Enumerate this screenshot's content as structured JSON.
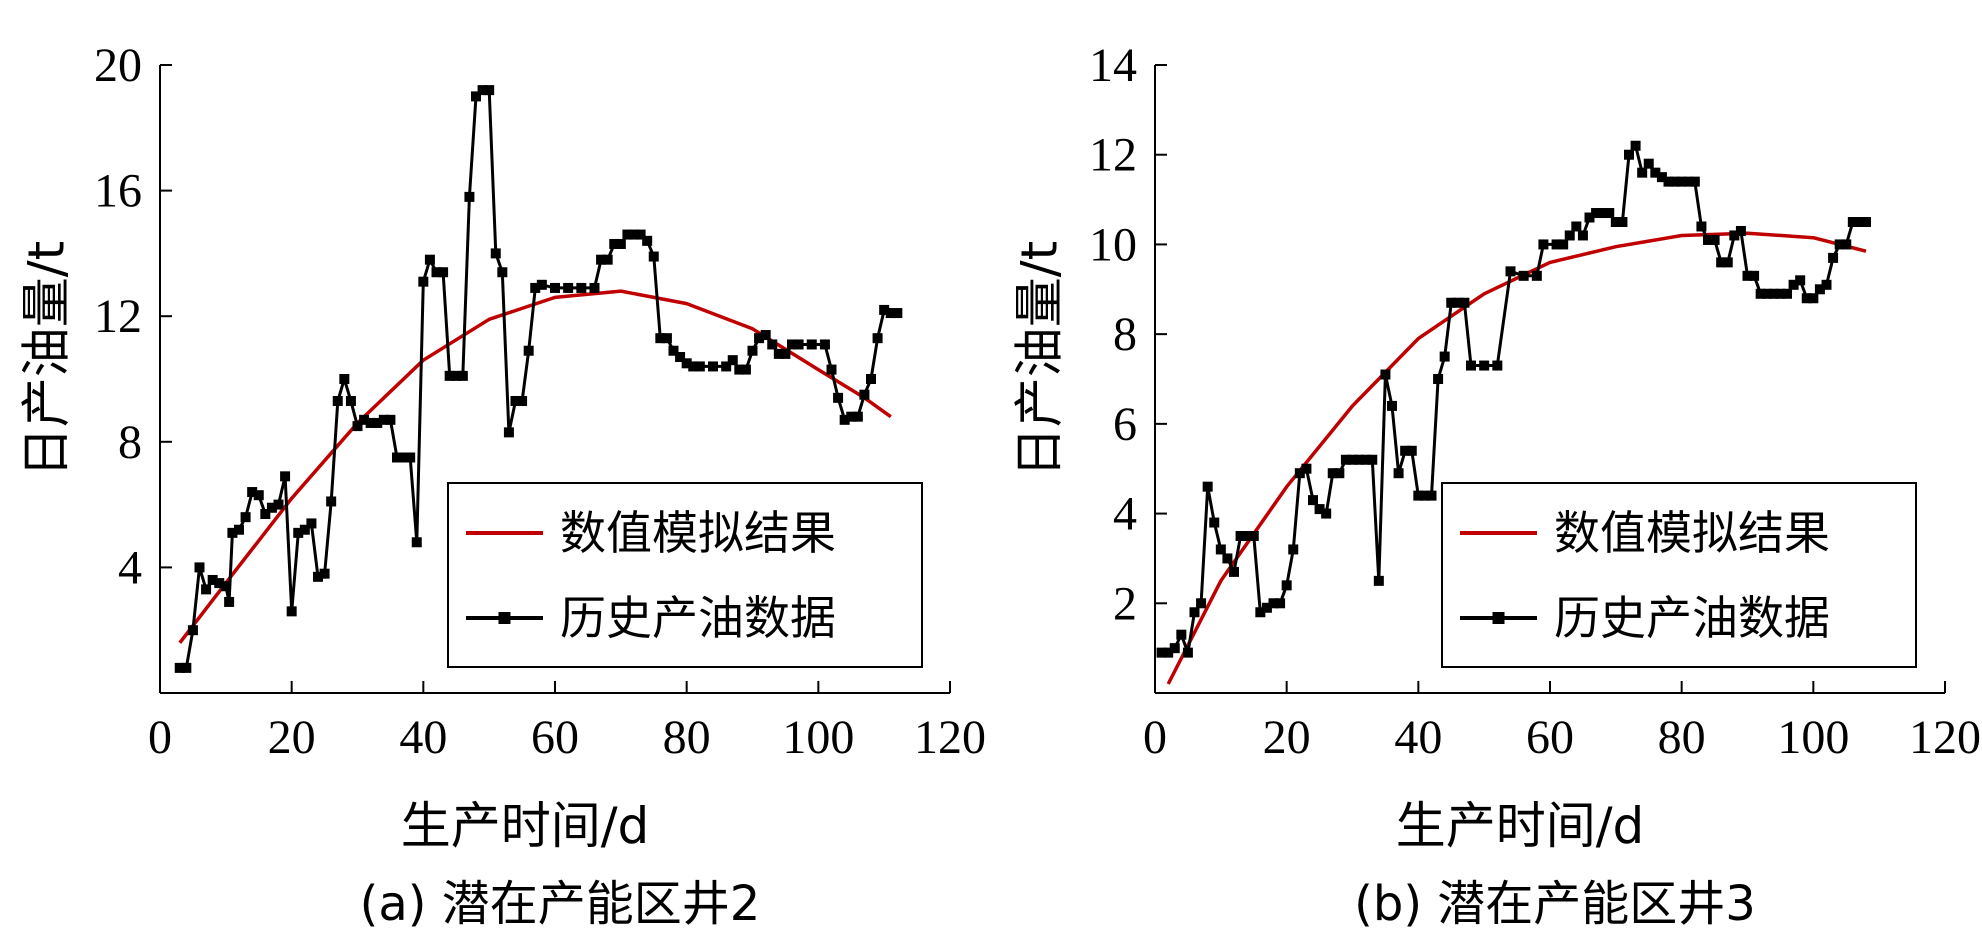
{
  "chart_data": [
    {
      "type": "line",
      "caption": "(a) 潜在产能区井2",
      "xlabel": "生产时间/d",
      "ylabel": "日产油量/t",
      "xlim": [
        0,
        120
      ],
      "ylim": [
        0,
        20
      ],
      "xticks": [
        0,
        20,
        40,
        60,
        80,
        100,
        120
      ],
      "yticks": [
        4,
        8,
        12,
        16,
        20
      ],
      "legend_position": "bottom-right",
      "grid": false,
      "series": [
        {
          "name": "数值模拟结果",
          "color": "#c00000",
          "marker": "none",
          "points": [
            [
              3,
              1.6
            ],
            [
              10,
              3.5
            ],
            [
              20,
              6.2
            ],
            [
              30,
              8.6
            ],
            [
              40,
              10.6
            ],
            [
              50,
              11.9
            ],
            [
              60,
              12.6
            ],
            [
              70,
              12.8
            ],
            [
              80,
              12.4
            ],
            [
              90,
              11.6
            ],
            [
              100,
              10.3
            ],
            [
              107,
              9.4
            ],
            [
              111,
              8.8
            ]
          ]
        },
        {
          "name": "历史产油数据",
          "color": "#000000",
          "marker": "square",
          "points": [
            [
              3,
              0.8
            ],
            [
              4,
              0.8
            ],
            [
              5,
              2.0
            ],
            [
              6,
              4.0
            ],
            [
              7,
              3.3
            ],
            [
              8,
              3.6
            ],
            [
              9,
              3.5
            ],
            [
              10,
              3.4
            ],
            [
              10.5,
              2.9
            ],
            [
              11,
              5.1
            ],
            [
              12,
              5.2
            ],
            [
              13,
              5.6
            ],
            [
              14,
              6.4
            ],
            [
              15,
              6.3
            ],
            [
              16,
              5.7
            ],
            [
              17,
              5.9
            ],
            [
              18,
              6.0
            ],
            [
              19,
              6.9
            ],
            [
              20,
              2.6
            ],
            [
              21,
              5.1
            ],
            [
              22,
              5.2
            ],
            [
              23,
              5.4
            ],
            [
              24,
              3.7
            ],
            [
              25,
              3.8
            ],
            [
              26,
              6.1
            ],
            [
              27,
              9.3
            ],
            [
              28,
              10.0
            ],
            [
              29,
              9.3
            ],
            [
              30,
              8.5
            ],
            [
              31,
              8.7
            ],
            [
              32,
              8.6
            ],
            [
              33,
              8.6
            ],
            [
              34,
              8.7
            ],
            [
              35,
              8.7
            ],
            [
              36,
              7.5
            ],
            [
              37,
              7.5
            ],
            [
              38,
              7.5
            ],
            [
              39,
              4.8
            ],
            [
              40,
              13.1
            ],
            [
              41,
              13.8
            ],
            [
              42,
              13.4
            ],
            [
              43,
              13.4
            ],
            [
              44,
              10.1
            ],
            [
              45,
              10.1
            ],
            [
              46,
              10.1
            ],
            [
              47,
              15.8
            ],
            [
              48,
              19.0
            ],
            [
              49,
              19.2
            ],
            [
              50,
              19.2
            ],
            [
              51,
              14.0
            ],
            [
              52,
              13.4
            ],
            [
              53,
              8.3
            ],
            [
              54,
              9.3
            ],
            [
              55,
              9.3
            ],
            [
              56,
              10.9
            ],
            [
              57,
              12.9
            ],
            [
              58,
              13.0
            ],
            [
              60,
              12.9
            ],
            [
              62,
              12.9
            ],
            [
              64,
              12.9
            ],
            [
              66,
              12.9
            ],
            [
              67,
              13.8
            ],
            [
              68,
              13.8
            ],
            [
              69,
              14.3
            ],
            [
              70,
              14.3
            ],
            [
              71,
              14.6
            ],
            [
              72,
              14.6
            ],
            [
              73,
              14.6
            ],
            [
              74,
              14.4
            ],
            [
              75,
              13.9
            ],
            [
              76,
              11.3
            ],
            [
              77,
              11.3
            ],
            [
              78,
              10.9
            ],
            [
              79,
              10.7
            ],
            [
              80,
              10.5
            ],
            [
              81,
              10.4
            ],
            [
              82,
              10.4
            ],
            [
              84,
              10.4
            ],
            [
              86,
              10.4
            ],
            [
              87,
              10.6
            ],
            [
              88,
              10.3
            ],
            [
              89,
              10.3
            ],
            [
              90,
              10.9
            ],
            [
              91,
              11.3
            ],
            [
              92,
              11.4
            ],
            [
              93,
              11.1
            ],
            [
              94,
              10.8
            ],
            [
              95,
              10.8
            ],
            [
              96,
              11.1
            ],
            [
              97,
              11.1
            ],
            [
              99,
              11.1
            ],
            [
              101,
              11.1
            ],
            [
              102,
              10.3
            ],
            [
              103,
              9.4
            ],
            [
              104,
              8.7
            ],
            [
              105,
              8.8
            ],
            [
              106,
              8.8
            ],
            [
              107,
              9.5
            ],
            [
              108,
              10.0
            ],
            [
              109,
              11.3
            ],
            [
              110,
              12.2
            ],
            [
              111,
              12.1
            ],
            [
              112,
              12.1
            ]
          ]
        }
      ]
    },
    {
      "type": "line",
      "caption": "(b) 潜在产能区井3",
      "xlabel": "生产时间/d",
      "ylabel": "日产油量/t",
      "xlim": [
        0,
        120
      ],
      "ylim": [
        0,
        14
      ],
      "xticks": [
        0,
        20,
        40,
        60,
        80,
        100,
        120
      ],
      "yticks": [
        2,
        4,
        6,
        8,
        10,
        12,
        14
      ],
      "legend_position": "bottom-right",
      "grid": false,
      "series": [
        {
          "name": "数值模拟结果",
          "color": "#c00000",
          "marker": "none",
          "points": [
            [
              2,
              0.2
            ],
            [
              10,
              2.5
            ],
            [
              20,
              4.6
            ],
            [
              30,
              6.4
            ],
            [
              40,
              7.9
            ],
            [
              50,
              8.9
            ],
            [
              60,
              9.6
            ],
            [
              70,
              9.95
            ],
            [
              80,
              10.2
            ],
            [
              90,
              10.25
            ],
            [
              100,
              10.15
            ],
            [
              108,
              9.85
            ]
          ]
        },
        {
          "name": "历史产油数据",
          "color": "#000000",
          "marker": "square",
          "points": [
            [
              1,
              0.9
            ],
            [
              2,
              0.9
            ],
            [
              3,
              1.0
            ],
            [
              4,
              1.3
            ],
            [
              5,
              0.9
            ],
            [
              6,
              1.8
            ],
            [
              7,
              2.0
            ],
            [
              8,
              4.6
            ],
            [
              9,
              3.8
            ],
            [
              10,
              3.2
            ],
            [
              11,
              3.0
            ],
            [
              12,
              2.7
            ],
            [
              13,
              3.5
            ],
            [
              14,
              3.5
            ],
            [
              15,
              3.5
            ],
            [
              16,
              1.8
            ],
            [
              17,
              1.9
            ],
            [
              18,
              2.0
            ],
            [
              19,
              2.0
            ],
            [
              20,
              2.4
            ],
            [
              21,
              3.2
            ],
            [
              22,
              4.9
            ],
            [
              23,
              5.0
            ],
            [
              24,
              4.3
            ],
            [
              25,
              4.1
            ],
            [
              26,
              4.0
            ],
            [
              27,
              4.9
            ],
            [
              28,
              4.9
            ],
            [
              29,
              5.2
            ],
            [
              30,
              5.2
            ],
            [
              31,
              5.2
            ],
            [
              32,
              5.2
            ],
            [
              33,
              5.2
            ],
            [
              34,
              2.5
            ],
            [
              35,
              7.1
            ],
            [
              36,
              6.4
            ],
            [
              37,
              4.9
            ],
            [
              38,
              5.4
            ],
            [
              39,
              5.4
            ],
            [
              40,
              4.4
            ],
            [
              41,
              4.4
            ],
            [
              42,
              4.4
            ],
            [
              43,
              7.0
            ],
            [
              44,
              7.5
            ],
            [
              45,
              8.7
            ],
            [
              46,
              8.7
            ],
            [
              47,
              8.7
            ],
            [
              48,
              7.3
            ],
            [
              50,
              7.3
            ],
            [
              52,
              7.3
            ],
            [
              54,
              9.4
            ],
            [
              56,
              9.3
            ],
            [
              58,
              9.3
            ],
            [
              59,
              10.0
            ],
            [
              61,
              10.0
            ],
            [
              62,
              10.0
            ],
            [
              63,
              10.2
            ],
            [
              64,
              10.4
            ],
            [
              65,
              10.2
            ],
            [
              66,
              10.6
            ],
            [
              67,
              10.7
            ],
            [
              68,
              10.7
            ],
            [
              69,
              10.7
            ],
            [
              70,
              10.5
            ],
            [
              71,
              10.5
            ],
            [
              72,
              12.0
            ],
            [
              73,
              12.2
            ],
            [
              74,
              11.6
            ],
            [
              75,
              11.8
            ],
            [
              76,
              11.6
            ],
            [
              77,
              11.5
            ],
            [
              78,
              11.4
            ],
            [
              79,
              11.4
            ],
            [
              80,
              11.4
            ],
            [
              81,
              11.4
            ],
            [
              82,
              11.4
            ],
            [
              83,
              10.4
            ],
            [
              84,
              10.1
            ],
            [
              85,
              10.1
            ],
            [
              86,
              9.6
            ],
            [
              87,
              9.6
            ],
            [
              88,
              10.2
            ],
            [
              89,
              10.3
            ],
            [
              90,
              9.3
            ],
            [
              91,
              9.3
            ],
            [
              92,
              8.9
            ],
            [
              93,
              8.9
            ],
            [
              94,
              8.9
            ],
            [
              95,
              8.9
            ],
            [
              96,
              8.9
            ],
            [
              97,
              9.1
            ],
            [
              98,
              9.2
            ],
            [
              99,
              8.8
            ],
            [
              100,
              8.8
            ],
            [
              101,
              9.0
            ],
            [
              102,
              9.1
            ],
            [
              103,
              9.7
            ],
            [
              104,
              10.0
            ],
            [
              105,
              10.0
            ],
            [
              106,
              10.5
            ],
            [
              107,
              10.5
            ],
            [
              108,
              10.5
            ]
          ]
        }
      ]
    }
  ]
}
